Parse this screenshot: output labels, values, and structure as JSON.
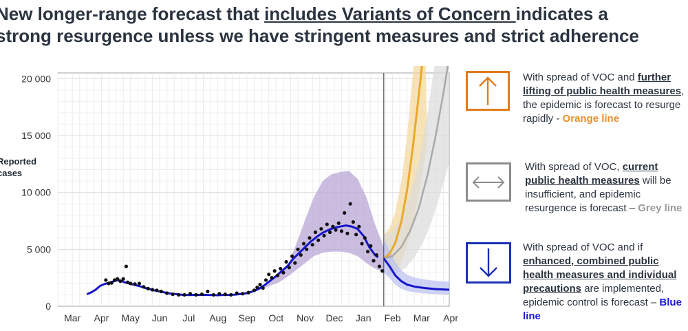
{
  "title": {
    "line1_pre": "New longer-range forecast that ",
    "line1_underlined": "includes Variants of Concern ",
    "line1_post": "indicates a",
    "line2": "strong resurgence unless we have stringent measures and strict adherence"
  },
  "scenarios": [
    {
      "icon": "up-arrow-icon",
      "color": "#e07b1a",
      "text_pre": "With spread of VOC and ",
      "text_bold": "further lifting of public health measures",
      "text_post": ", the epidemic is forecast to resurge rapidly - ",
      "line_label": "Orange line",
      "line_color": "#e8902e"
    },
    {
      "icon": "left-right-arrow-icon",
      "color": "#8c8c8c",
      "text_pre": "With spread of VOC, ",
      "text_bold": "current public health measures",
      "text_post": " will be insufficient, and epidemic resurgence is forecast – ",
      "line_label": "Grey line",
      "line_color": "#9a9a9a"
    },
    {
      "icon": "down-arrow-icon",
      "color": "#1b2fb5",
      "text_pre": "With spread of VOC and if ",
      "text_bold": "enhanced, combined public health measures and individual precautions",
      "text_post": " are implemented, epidemic control is forecast – ",
      "line_label": "Blue line",
      "line_color": "#1a1ad6"
    }
  ],
  "chart_data": {
    "type": "scatter",
    "ylabel": "Reported\ncases",
    "ylim": [
      0,
      20500
    ],
    "yticks": [
      0,
      5000,
      10000,
      15000,
      20000
    ],
    "ytick_labels": [
      "0",
      "5 000",
      "10 000",
      "15 000",
      "20 000"
    ],
    "x_months": [
      "Mar",
      "Apr",
      "May",
      "Jun",
      "Jul",
      "Aug",
      "Sep",
      "Oct",
      "Nov",
      "Dec",
      "Jan",
      "Feb",
      "Mar",
      "Apr"
    ],
    "grid": true,
    "forecast_start": "Feb 8",
    "observed_points": [
      [
        3.0,
        1050
      ],
      [
        3.15,
        1220
      ],
      [
        3.3,
        1450
      ],
      [
        3.45,
        1780
      ],
      [
        3.6,
        1950
      ],
      [
        3.75,
        2050
      ],
      [
        3.9,
        2180
      ],
      [
        4.0,
        2250
      ],
      [
        4.1,
        2300
      ],
      [
        4.2,
        2200
      ],
      [
        4.3,
        2100
      ],
      [
        4.45,
        2000
      ],
      [
        4.6,
        1900
      ],
      [
        4.75,
        1800
      ],
      [
        4.9,
        1700
      ],
      [
        5.0,
        1600
      ],
      [
        5.15,
        1500
      ],
      [
        5.3,
        1400
      ],
      [
        5.5,
        1300
      ],
      [
        5.7,
        1200
      ],
      [
        5.9,
        1100
      ],
      [
        6.1,
        1050
      ],
      [
        6.3,
        1000
      ],
      [
        6.5,
        980
      ],
      [
        6.7,
        1000
      ],
      [
        6.9,
        1000
      ],
      [
        7.1,
        1000
      ],
      [
        7.3,
        980
      ],
      [
        7.5,
        970
      ],
      [
        7.7,
        990
      ],
      [
        7.9,
        1000
      ],
      [
        8.1,
        1020
      ],
      [
        8.3,
        1080
      ],
      [
        8.5,
        1150
      ],
      [
        8.7,
        1300
      ],
      [
        8.9,
        1520
      ],
      [
        9.1,
        1850
      ],
      [
        9.3,
        2250
      ],
      [
        9.5,
        2650
      ],
      [
        9.7,
        3100
      ],
      [
        9.9,
        3550
      ],
      [
        10.1,
        4200
      ],
      [
        10.3,
        4700
      ],
      [
        10.5,
        5200
      ],
      [
        10.7,
        5700
      ],
      [
        10.9,
        6100
      ],
      [
        11.1,
        6450
      ],
      [
        11.3,
        6700
      ],
      [
        11.5,
        6900
      ],
      [
        11.7,
        7000
      ],
      [
        11.9,
        7100
      ],
      [
        12.1,
        7000
      ],
      [
        12.3,
        6800
      ],
      [
        12.5,
        6200
      ],
      [
        12.7,
        5200
      ],
      [
        12.9,
        4500
      ],
      [
        13.0,
        4300
      ]
    ],
    "scatter_points": [
      [
        3.65,
        2300
      ],
      [
        3.75,
        2000
      ],
      [
        3.85,
        2050
      ],
      [
        3.95,
        2300
      ],
      [
        4.05,
        2400
      ],
      [
        4.15,
        2200
      ],
      [
        4.25,
        2400
      ],
      [
        4.35,
        3500
      ],
      [
        4.4,
        2100
      ],
      [
        4.5,
        2000
      ],
      [
        4.65,
        1950
      ],
      [
        4.8,
        2000
      ],
      [
        4.95,
        1700
      ],
      [
        5.1,
        1550
      ],
      [
        5.25,
        1450
      ],
      [
        5.4,
        1400
      ],
      [
        5.55,
        1300
      ],
      [
        5.75,
        1150
      ],
      [
        5.95,
        1050
      ],
      [
        6.15,
        1000
      ],
      [
        6.35,
        1000
      ],
      [
        6.55,
        1100
      ],
      [
        6.75,
        1000
      ],
      [
        6.95,
        1050
      ],
      [
        7.15,
        1300
      ],
      [
        7.35,
        1000
      ],
      [
        7.55,
        1100
      ],
      [
        7.75,
        1050
      ],
      [
        7.95,
        1000
      ],
      [
        8.15,
        1150
      ],
      [
        8.35,
        1100
      ],
      [
        8.55,
        1200
      ],
      [
        8.75,
        1400
      ],
      [
        8.85,
        1650
      ],
      [
        8.95,
        1900
      ],
      [
        9.05,
        1600
      ],
      [
        9.15,
        2300
      ],
      [
        9.25,
        2800
      ],
      [
        9.35,
        2500
      ],
      [
        9.45,
        3100
      ],
      [
        9.55,
        2700
      ],
      [
        9.65,
        3300
      ],
      [
        9.75,
        2950
      ],
      [
        9.85,
        3900
      ],
      [
        9.95,
        3400
      ],
      [
        10.05,
        4400
      ],
      [
        10.15,
        3800
      ],
      [
        10.25,
        5000
      ],
      [
        10.35,
        4500
      ],
      [
        10.45,
        5500
      ],
      [
        10.55,
        5000
      ],
      [
        10.65,
        6000
      ],
      [
        10.75,
        5400
      ],
      [
        10.85,
        6500
      ],
      [
        10.95,
        5800
      ],
      [
        11.05,
        6800
      ],
      [
        11.15,
        6200
      ],
      [
        11.25,
        7200
      ],
      [
        11.35,
        6500
      ],
      [
        11.45,
        7000
      ],
      [
        11.55,
        6700
      ],
      [
        11.65,
        7300
      ],
      [
        11.75,
        6600
      ],
      [
        11.85,
        8200
      ],
      [
        11.95,
        6400
      ],
      [
        12.05,
        9000
      ],
      [
        12.15,
        7400
      ],
      [
        12.25,
        6300
      ],
      [
        12.35,
        7000
      ],
      [
        12.45,
        5500
      ],
      [
        12.55,
        6000
      ],
      [
        12.65,
        4800
      ],
      [
        12.75,
        5300
      ],
      [
        12.85,
        4000
      ],
      [
        12.95,
        4500
      ],
      [
        13.05,
        3500
      ],
      [
        13.15,
        3100
      ]
    ],
    "forecast_start_x": 13.2,
    "series": [
      {
        "color": "#e8a92a",
        "band": "#f5d79a",
        "points": [
          [
            13.2,
            4200
          ],
          [
            13.4,
            4600
          ],
          [
            13.6,
            5600
          ],
          [
            13.8,
            7400
          ],
          [
            14.0,
            10200
          ],
          [
            14.2,
            14000
          ],
          [
            14.4,
            18500
          ],
          [
            14.55,
            22000
          ]
        ]
      },
      {
        "color": "#a8a8a8",
        "band": "#dcdcdc",
        "points": [
          [
            13.2,
            4200
          ],
          [
            13.5,
            4400
          ],
          [
            13.8,
            5200
          ],
          [
            14.1,
            6600
          ],
          [
            14.4,
            8600
          ],
          [
            14.7,
            11500
          ],
          [
            15.0,
            15200
          ],
          [
            15.3,
            19500
          ],
          [
            15.45,
            22000
          ]
        ]
      },
      {
        "color": "#1414c8",
        "band": "#b9bff0",
        "points": [
          [
            13.2,
            4200
          ],
          [
            13.4,
            3500
          ],
          [
            13.6,
            2700
          ],
          [
            13.8,
            2200
          ],
          [
            14.0,
            1900
          ],
          [
            14.3,
            1700
          ],
          [
            14.6,
            1600
          ],
          [
            15.0,
            1500
          ],
          [
            15.45,
            1450
          ]
        ]
      }
    ],
    "fit_band": [
      [
        8.7,
        1400,
        1300
      ],
      [
        9.0,
        1750,
        1500
      ],
      [
        9.3,
        2300,
        1800
      ],
      [
        9.6,
        3000,
        2100
      ],
      [
        9.9,
        3600,
        2600
      ],
      [
        10.2,
        5500,
        3200
      ],
      [
        10.5,
        7600,
        3800
      ],
      [
        10.8,
        9600,
        4400
      ],
      [
        11.1,
        11000,
        4700
      ],
      [
        11.4,
        11600,
        4800
      ],
      [
        11.7,
        11800,
        4800
      ],
      [
        12.0,
        11900,
        4700
      ],
      [
        12.3,
        11200,
        4400
      ],
      [
        12.6,
        9600,
        3800
      ],
      [
        12.9,
        7200,
        3300
      ],
      [
        13.2,
        5200,
        3000
      ]
    ]
  }
}
